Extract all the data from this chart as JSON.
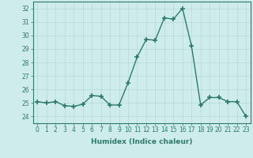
{
  "x": [
    0,
    1,
    2,
    3,
    4,
    5,
    6,
    7,
    8,
    9,
    10,
    11,
    12,
    13,
    14,
    15,
    16,
    17,
    18,
    19,
    20,
    21,
    22,
    23
  ],
  "y": [
    25.1,
    25.0,
    25.1,
    24.8,
    24.75,
    24.9,
    25.55,
    25.5,
    24.85,
    24.85,
    26.5,
    28.4,
    29.7,
    29.65,
    31.3,
    31.2,
    32.0,
    29.2,
    24.85,
    25.4,
    25.4,
    25.1,
    25.1,
    24.0
  ],
  "line_color": "#2d7a6b",
  "marker": "+",
  "marker_size": 4,
  "marker_lw": 1.2,
  "bg_color": "#ceecea",
  "grid_color": "#b8d8d4",
  "xlabel": "Humidex (Indice chaleur)",
  "xlim": [
    -0.5,
    23.5
  ],
  "ylim": [
    23.5,
    32.5
  ],
  "yticks": [
    24,
    25,
    26,
    27,
    28,
    29,
    30,
    31,
    32
  ],
  "xticks": [
    0,
    1,
    2,
    3,
    4,
    5,
    6,
    7,
    8,
    9,
    10,
    11,
    12,
    13,
    14,
    15,
    16,
    17,
    18,
    19,
    20,
    21,
    22,
    23
  ],
  "tick_color": "#2d7a6b",
  "label_color": "#2d7a6b",
  "axis_color": "#2d7a6b",
  "tick_fontsize": 5.5,
  "xlabel_fontsize": 6.5,
  "linewidth": 1.0
}
